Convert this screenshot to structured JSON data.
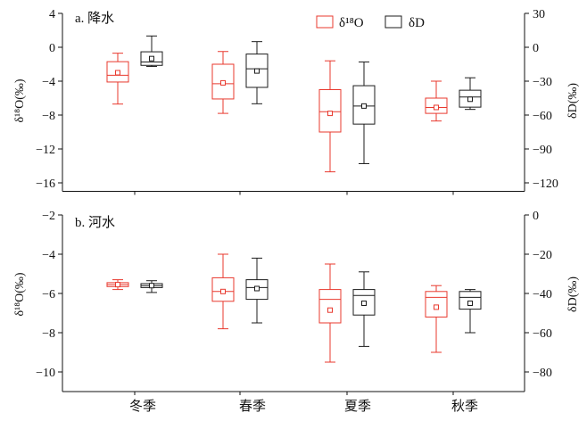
{
  "chart_data": {
    "type": "box",
    "categories": [
      "冬季",
      "春季",
      "夏季",
      "秋季"
    ],
    "series": [
      {
        "name": "δ¹⁸O",
        "color": "#e8392e",
        "axis": "left"
      },
      {
        "name": "δD",
        "color": "#1c1c1c",
        "axis": "right"
      }
    ],
    "legend": "top-center",
    "grid": false,
    "panels": [
      {
        "title": "a. 降水",
        "ylabel": "δ¹⁸O(‰)",
        "y2label": "δD(‰)",
        "ylim": [
          -17,
          4
        ],
        "yticks": [
          4,
          0,
          -4,
          -8,
          -12,
          -16
        ],
        "y2lim": [
          -127.5,
          30
        ],
        "y2ticks": [
          30,
          0,
          -30,
          -60,
          -90,
          -120
        ],
        "boxes": [
          [
            {
              "min": -6.7,
              "q1": -4.1,
              "median": -3.3,
              "q3": -1.7,
              "max": -0.7,
              "mean": -3.0
            },
            {
              "min": -7.8,
              "q1": -6.1,
              "median": -4.3,
              "q3": -2.0,
              "max": -0.5,
              "mean": -4.2
            },
            {
              "min": -14.7,
              "q1": -10.0,
              "median": -7.6,
              "q3": -5.0,
              "max": -1.6,
              "mean": -7.8
            },
            {
              "min": -8.7,
              "q1": -7.8,
              "median": -7.1,
              "q3": -6.0,
              "max": -4.0,
              "mean": -7.1
            }
          ],
          [
            {
              "min": -17,
              "q1": -16,
              "median": -13,
              "q3": -4,
              "max": 10,
              "mean": -10
            },
            {
              "min": -50,
              "q1": -35.5,
              "median": -19,
              "q3": -6,
              "max": 5,
              "mean": -21
            },
            {
              "min": -103,
              "q1": -68,
              "median": -52,
              "q3": -34,
              "max": -13,
              "mean": -52
            },
            {
              "min": -55,
              "q1": -53,
              "median": -44,
              "q3": -38,
              "max": -27,
              "mean": -46
            }
          ]
        ]
      },
      {
        "title": "b. 河水",
        "ylabel": "δ¹⁸O(‰)",
        "y2label": "δD(‰)",
        "ylim": [
          -11,
          -2
        ],
        "yticks": [
          -2,
          -4,
          -6,
          -8,
          -10
        ],
        "y2lim": [
          -90,
          0
        ],
        "y2ticks": [
          0,
          -20,
          -40,
          -60,
          -80
        ],
        "boxes": [
          [
            {
              "min": -5.8,
              "q1": -5.65,
              "median": -5.55,
              "q3": -5.45,
              "max": -5.3,
              "mean": -5.55
            },
            {
              "min": -7.8,
              "q1": -6.4,
              "median": -5.9,
              "q3": -5.2,
              "max": -4.0,
              "mean": -5.9
            },
            {
              "min": -9.5,
              "q1": -7.5,
              "median": -6.3,
              "q3": -5.8,
              "max": -4.5,
              "mean": -6.85
            },
            {
              "min": -9.0,
              "q1": -7.2,
              "median": -6.2,
              "q3": -5.9,
              "max": -5.6,
              "mean": -6.7
            }
          ],
          [
            {
              "min": -39.5,
              "q1": -37,
              "median": -36,
              "q3": -35,
              "max": -33.5,
              "mean": -36
            },
            {
              "min": -55,
              "q1": -43,
              "median": -37,
              "q3": -33,
              "max": -22,
              "mean": -37.5
            },
            {
              "min": -67,
              "q1": -51,
              "median": -41,
              "q3": -38,
              "max": -29,
              "mean": -45
            },
            {
              "min": -60,
              "q1": -48,
              "median": -42,
              "q3": -39,
              "max": -38,
              "mean": -45
            }
          ]
        ]
      }
    ]
  }
}
